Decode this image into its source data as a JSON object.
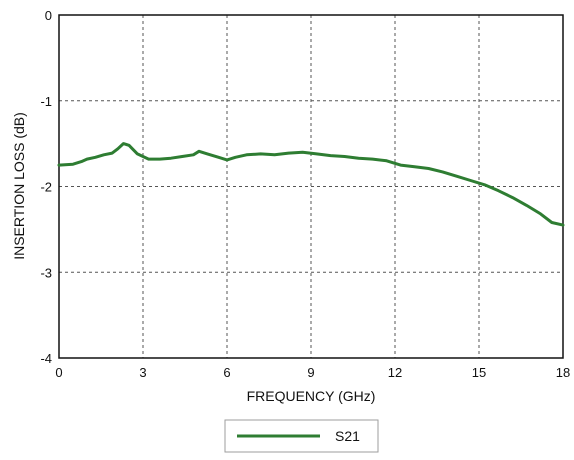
{
  "chart_data": {
    "type": "line",
    "xlabel": "FREQUENCY (GHz)",
    "ylabel": "INSERTION LOSS (dB)",
    "xlim": [
      0,
      18
    ],
    "ylim": [
      -4,
      0
    ],
    "x_ticks": [
      0,
      3,
      6,
      9,
      12,
      15,
      18
    ],
    "y_ticks": [
      0,
      -1,
      -2,
      -3,
      -4
    ],
    "grid": true,
    "legend_position": "bottom-center",
    "series": [
      {
        "name": "S21",
        "color": "#2e7d32",
        "x": [
          0,
          0.5,
          0.8,
          1.0,
          1.3,
          1.6,
          1.9,
          2.1,
          2.3,
          2.5,
          2.8,
          3.2,
          3.6,
          4.0,
          4.4,
          4.8,
          5.0,
          5.3,
          5.7,
          6.0,
          6.3,
          6.7,
          7.2,
          7.7,
          8.2,
          8.7,
          9.2,
          9.7,
          10.2,
          10.7,
          11.2,
          11.7,
          12.2,
          12.7,
          13.2,
          13.7,
          14.2,
          14.7,
          15.2,
          15.7,
          16.2,
          16.7,
          17.2,
          17.6,
          18.0
        ],
        "y": [
          -1.75,
          -1.74,
          -1.71,
          -1.68,
          -1.66,
          -1.63,
          -1.61,
          -1.56,
          -1.5,
          -1.52,
          -1.62,
          -1.68,
          -1.68,
          -1.67,
          -1.65,
          -1.63,
          -1.59,
          -1.62,
          -1.66,
          -1.69,
          -1.66,
          -1.63,
          -1.62,
          -1.63,
          -1.61,
          -1.6,
          -1.62,
          -1.64,
          -1.65,
          -1.67,
          -1.68,
          -1.7,
          -1.75,
          -1.77,
          -1.79,
          -1.83,
          -1.88,
          -1.93,
          -1.98,
          -2.05,
          -2.13,
          -2.22,
          -2.32,
          -2.42,
          -2.45
        ]
      }
    ]
  }
}
